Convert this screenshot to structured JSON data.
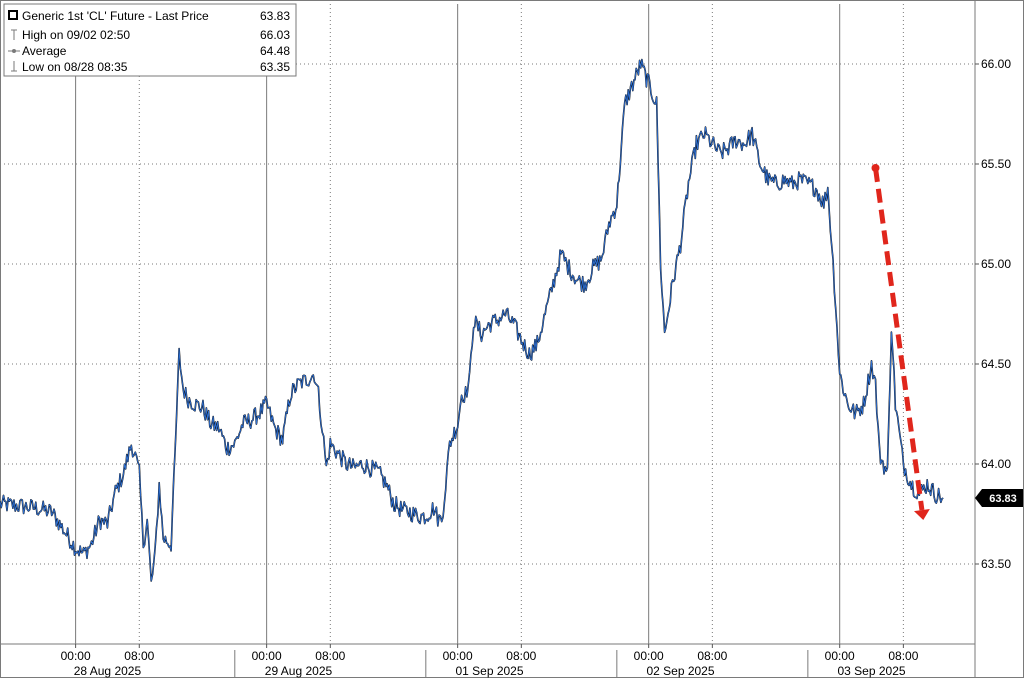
{
  "legend": {
    "series_label": "Generic 1st 'CL' Future - Last Price",
    "last_value": "63.83",
    "high_label": "High on 09/02 02:50",
    "high_value": "66.03",
    "average_label": "Average",
    "average_value": "64.48",
    "low_label": "Low on 08/28 08:35",
    "low_value": "63.35"
  },
  "last_price_badge": "63.83",
  "colors": {
    "line_dark": "#000000",
    "line_blue": "#2f6fd0",
    "arrow": "#e0261c",
    "grid": "#7a7a7a",
    "badge_bg": "#000000",
    "badge_text": "#ffffff"
  },
  "chart_data": {
    "type": "line",
    "title": "Generic 1st 'CL' Future - Last Price",
    "xlabel": "",
    "ylabel": "",
    "ylim": [
      63.1,
      66.3
    ],
    "y_ticks": [
      "63.50",
      "64.00",
      "64.50",
      "65.00",
      "65.50",
      "66.00"
    ],
    "x_tick_labels": [
      "00:00",
      "08:00",
      "00:00",
      "08:00",
      "00:00",
      "08:00",
      "00:00",
      "08:00",
      "00:00",
      "08:00"
    ],
    "x_ticks": [
      0,
      8,
      24,
      32,
      48,
      56,
      72,
      80,
      96,
      104
    ],
    "date_labels": [
      "28 Aug 2025",
      "29 Aug 2025",
      "01 Sep 2025",
      "02 Sep 2025",
      "03 Sep 2025"
    ],
    "date_label_x": [
      4,
      28,
      52,
      76,
      100
    ],
    "xlim": [
      -9.5,
      113
    ],
    "series": [
      {
        "values": [
          [
            -9.5,
            63.8
          ],
          [
            -7,
            63.79
          ],
          [
            -5,
            63.78
          ],
          [
            -3,
            63.76
          ],
          [
            -2,
            63.7
          ],
          [
            -1,
            63.64
          ],
          [
            0,
            63.58
          ],
          [
            1,
            63.55
          ],
          [
            2,
            63.6
          ],
          [
            3,
            63.72
          ],
          [
            4,
            63.7
          ],
          [
            5,
            63.86
          ],
          [
            6,
            63.95
          ],
          [
            7,
            64.1
          ],
          [
            7.5,
            64.04
          ],
          [
            8,
            63.95
          ],
          [
            8.5,
            63.6
          ],
          [
            9,
            63.72
          ],
          [
            9.5,
            63.4
          ],
          [
            10,
            63.55
          ],
          [
            10.5,
            63.9
          ],
          [
            11,
            63.63
          ],
          [
            12,
            63.6
          ],
          [
            12.5,
            64.05
          ],
          [
            13,
            64.55
          ],
          [
            13.5,
            64.38
          ],
          [
            14,
            64.33
          ],
          [
            15,
            64.3
          ],
          [
            16,
            64.28
          ],
          [
            17,
            64.2
          ],
          [
            18,
            64.18
          ],
          [
            19,
            64.08
          ],
          [
            20,
            64.1
          ],
          [
            21,
            64.2
          ],
          [
            22,
            64.22
          ],
          [
            23,
            64.25
          ],
          [
            24,
            64.3
          ],
          [
            25,
            64.18
          ],
          [
            26,
            64.12
          ],
          [
            27,
            64.35
          ],
          [
            28,
            64.4
          ],
          [
            29,
            64.42
          ],
          [
            30,
            64.45
          ],
          [
            30.5,
            64.35
          ],
          [
            31,
            64.18
          ],
          [
            31.5,
            63.98
          ],
          [
            32,
            64.1
          ],
          [
            33,
            64.05
          ],
          [
            34,
            64.0
          ],
          [
            35,
            63.98
          ],
          [
            36,
            64.0
          ],
          [
            37,
            63.98
          ],
          [
            38,
            63.96
          ],
          [
            39,
            63.9
          ],
          [
            40,
            63.8
          ],
          [
            41,
            63.77
          ],
          [
            42,
            63.76
          ],
          [
            43,
            63.74
          ],
          [
            44,
            63.74
          ],
          [
            45,
            63.78
          ],
          [
            45.5,
            63.73
          ],
          [
            46,
            63.72
          ],
          [
            46.5,
            63.9
          ],
          [
            47,
            64.1
          ],
          [
            48,
            64.2
          ],
          [
            48.5,
            64.35
          ],
          [
            49,
            64.35
          ],
          [
            49.5,
            64.42
          ],
          [
            50,
            64.72
          ],
          [
            51,
            64.65
          ],
          [
            52,
            64.7
          ],
          [
            53,
            64.72
          ],
          [
            54,
            64.75
          ],
          [
            55,
            64.7
          ],
          [
            56,
            64.62
          ],
          [
            57,
            64.55
          ],
          [
            58,
            64.6
          ],
          [
            59,
            64.75
          ],
          [
            60,
            64.9
          ],
          [
            61,
            65.05
          ],
          [
            62,
            64.98
          ],
          [
            63,
            64.92
          ],
          [
            64,
            64.9
          ],
          [
            65,
            64.98
          ],
          [
            66,
            65.02
          ],
          [
            66.5,
            65.1
          ],
          [
            67,
            65.2
          ],
          [
            68,
            65.3
          ],
          [
            69,
            65.8
          ],
          [
            70,
            65.9
          ],
          [
            71,
            66.0
          ],
          [
            72,
            65.9
          ],
          [
            73,
            65.8
          ],
          [
            73.5,
            65.0
          ],
          [
            74,
            64.65
          ],
          [
            75,
            64.9
          ],
          [
            76,
            65.1
          ],
          [
            77,
            65.4
          ],
          [
            78,
            65.6
          ],
          [
            79,
            65.65
          ],
          [
            80,
            65.6
          ],
          [
            81,
            65.55
          ],
          [
            82,
            65.58
          ],
          [
            83,
            65.62
          ],
          [
            84,
            65.6
          ],
          [
            85,
            65.65
          ],
          [
            86,
            65.5
          ],
          [
            87,
            65.42
          ],
          [
            88,
            65.4
          ],
          [
            89,
            65.42
          ],
          [
            90,
            65.4
          ],
          [
            91,
            65.42
          ],
          [
            92,
            65.4
          ],
          [
            93,
            65.38
          ],
          [
            94,
            65.3
          ],
          [
            94.5,
            65.38
          ],
          [
            95,
            65.1
          ],
          [
            95.5,
            64.8
          ],
          [
            96,
            64.45
          ],
          [
            97,
            64.3
          ],
          [
            98,
            64.25
          ],
          [
            99,
            64.3
          ],
          [
            100,
            64.5
          ],
          [
            100.5,
            64.4
          ],
          [
            101,
            64.05
          ],
          [
            102,
            63.95
          ],
          [
            102.5,
            64.7
          ],
          [
            103,
            64.3
          ],
          [
            104,
            64.0
          ],
          [
            105,
            63.9
          ],
          [
            106,
            63.85
          ],
          [
            107,
            63.9
          ],
          [
            108,
            63.85
          ],
          [
            109,
            63.83
          ]
        ]
      }
    ],
    "annotations": [
      {
        "type": "arrow",
        "from": [
          100.5,
          65.48
        ],
        "to": [
          106.5,
          63.72
        ],
        "style": "dashed"
      }
    ],
    "grid": true,
    "legend_position": "top-left"
  }
}
